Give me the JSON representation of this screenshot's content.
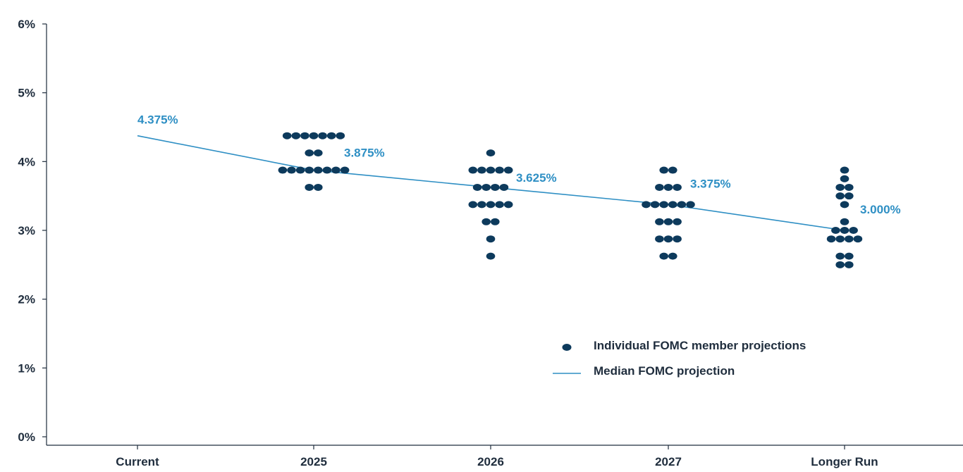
{
  "chart_data": {
    "type": "scatter",
    "categories": [
      "Current",
      "2025",
      "2026",
      "2027",
      "Longer Run"
    ],
    "y_ticks": [
      "0%",
      "1%",
      "2%",
      "3%",
      "4%",
      "5%",
      "6%"
    ],
    "ylim": [
      0,
      6
    ],
    "grid": false,
    "legend_position": "bottom-right",
    "colors": {
      "dots": "#0d3a5c",
      "median": "#2e8fc4",
      "axis": "#1f2d3d"
    },
    "series": [
      {
        "name": "Individual FOMC member projections",
        "type": "dots",
        "points": [
          {
            "x": "2025",
            "y": 4.375,
            "count": 7
          },
          {
            "x": "2025",
            "y": 4.125,
            "count": 2
          },
          {
            "x": "2025",
            "y": 3.875,
            "count": 8
          },
          {
            "x": "2025",
            "y": 3.625,
            "count": 2
          },
          {
            "x": "2026",
            "y": 4.125,
            "count": 1
          },
          {
            "x": "2026",
            "y": 3.875,
            "count": 5
          },
          {
            "x": "2026",
            "y": 3.625,
            "count": 4
          },
          {
            "x": "2026",
            "y": 3.375,
            "count": 5
          },
          {
            "x": "2026",
            "y": 3.125,
            "count": 2
          },
          {
            "x": "2026",
            "y": 2.875,
            "count": 1
          },
          {
            "x": "2026",
            "y": 2.625,
            "count": 1
          },
          {
            "x": "2027",
            "y": 3.875,
            "count": 2
          },
          {
            "x": "2027",
            "y": 3.625,
            "count": 3
          },
          {
            "x": "2027",
            "y": 3.375,
            "count": 6
          },
          {
            "x": "2027",
            "y": 3.125,
            "count": 3
          },
          {
            "x": "2027",
            "y": 2.875,
            "count": 3
          },
          {
            "x": "2027",
            "y": 2.625,
            "count": 2
          },
          {
            "x": "Longer Run",
            "y": 3.875,
            "count": 1
          },
          {
            "x": "Longer Run",
            "y": 3.75,
            "count": 1
          },
          {
            "x": "Longer Run",
            "y": 3.625,
            "count": 2
          },
          {
            "x": "Longer Run",
            "y": 3.5,
            "count": 2
          },
          {
            "x": "Longer Run",
            "y": 3.375,
            "count": 1
          },
          {
            "x": "Longer Run",
            "y": 3.125,
            "count": 1
          },
          {
            "x": "Longer Run",
            "y": 3.0,
            "count": 3
          },
          {
            "x": "Longer Run",
            "y": 2.875,
            "count": 4
          },
          {
            "x": "Longer Run",
            "y": 2.625,
            "count": 2
          },
          {
            "x": "Longer Run",
            "y": 2.5,
            "count": 2
          }
        ]
      },
      {
        "name": "Median FOMC projection",
        "type": "line",
        "values": [
          4.375,
          3.875,
          3.625,
          3.375,
          3.0
        ],
        "labels": [
          "4.375%",
          "3.875%",
          "3.625%",
          "3.375%",
          "3.000%"
        ]
      }
    ]
  }
}
